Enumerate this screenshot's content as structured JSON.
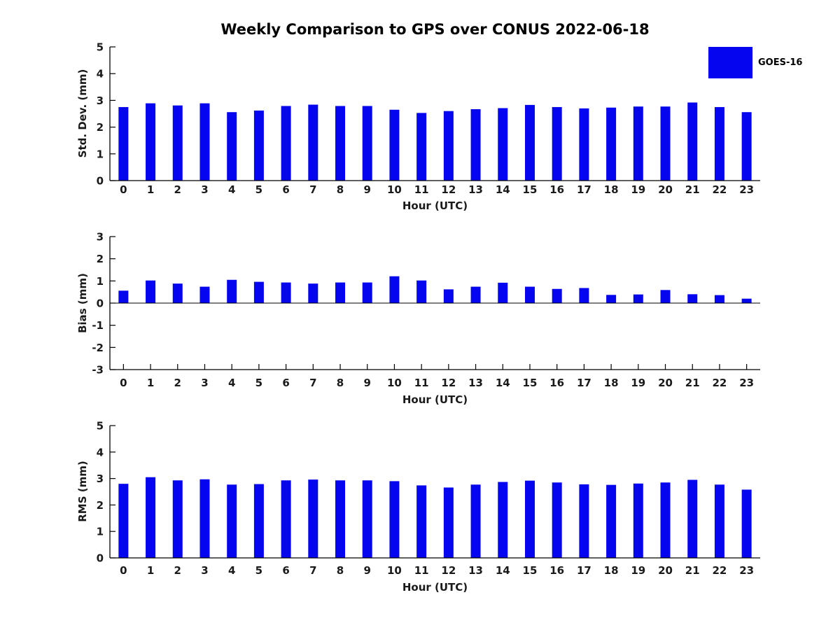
{
  "page": {
    "title": "Weekly Comparison to GPS over CONUS 2022-06-18"
  },
  "legend": {
    "label": "GOES-16",
    "color": "#0505f0"
  },
  "colors": {
    "bar": "#0505f0",
    "axis": "#000000",
    "text": "#1a1a1a"
  },
  "chart_data": [
    {
      "type": "bar",
      "series_name": "GOES-16",
      "ylabel": "Std. Dev. (mm)",
      "xlabel": "Hour (UTC)",
      "categories": [
        "0",
        "1",
        "2",
        "3",
        "4",
        "5",
        "6",
        "7",
        "8",
        "9",
        "10",
        "11",
        "12",
        "13",
        "14",
        "15",
        "16",
        "17",
        "18",
        "19",
        "20",
        "21",
        "22",
        "23"
      ],
      "values": [
        2.75,
        2.89,
        2.81,
        2.89,
        2.56,
        2.62,
        2.79,
        2.84,
        2.79,
        2.79,
        2.65,
        2.53,
        2.6,
        2.67,
        2.71,
        2.83,
        2.75,
        2.7,
        2.73,
        2.77,
        2.77,
        2.92,
        2.75,
        2.56
      ],
      "ylim": [
        0,
        5
      ],
      "yticks": [
        0,
        1,
        2,
        3,
        4,
        5
      ],
      "grid": false
    },
    {
      "type": "bar",
      "series_name": "GOES-16",
      "ylabel": "Bias (mm)",
      "xlabel": "Hour (UTC)",
      "categories": [
        "0",
        "1",
        "2",
        "3",
        "4",
        "5",
        "6",
        "7",
        "8",
        "9",
        "10",
        "11",
        "12",
        "13",
        "14",
        "15",
        "16",
        "17",
        "18",
        "19",
        "20",
        "21",
        "22",
        "23"
      ],
      "values": [
        0.56,
        1.02,
        0.88,
        0.74,
        1.05,
        0.96,
        0.93,
        0.88,
        0.93,
        0.93,
        1.21,
        1.02,
        0.62,
        0.74,
        0.92,
        0.74,
        0.64,
        0.68,
        0.37,
        0.39,
        0.59,
        0.4,
        0.36,
        0.2
      ],
      "ylim": [
        -3,
        3
      ],
      "yticks": [
        -3,
        -2,
        -1,
        0,
        1,
        2,
        3
      ],
      "grid": false
    },
    {
      "type": "bar",
      "series_name": "GOES-16",
      "ylabel": "RMS (mm)",
      "xlabel": "Hour (UTC)",
      "categories": [
        "0",
        "1",
        "2",
        "3",
        "4",
        "5",
        "6",
        "7",
        "8",
        "9",
        "10",
        "11",
        "12",
        "13",
        "14",
        "15",
        "16",
        "17",
        "18",
        "19",
        "20",
        "21",
        "22",
        "23"
      ],
      "values": [
        2.8,
        3.05,
        2.93,
        2.97,
        2.77,
        2.79,
        2.93,
        2.96,
        2.93,
        2.93,
        2.9,
        2.74,
        2.66,
        2.77,
        2.87,
        2.92,
        2.85,
        2.78,
        2.76,
        2.81,
        2.85,
        2.95,
        2.77,
        2.58
      ],
      "ylim": [
        0,
        5
      ],
      "yticks": [
        0,
        1,
        2,
        3,
        4,
        5
      ],
      "grid": false
    }
  ]
}
